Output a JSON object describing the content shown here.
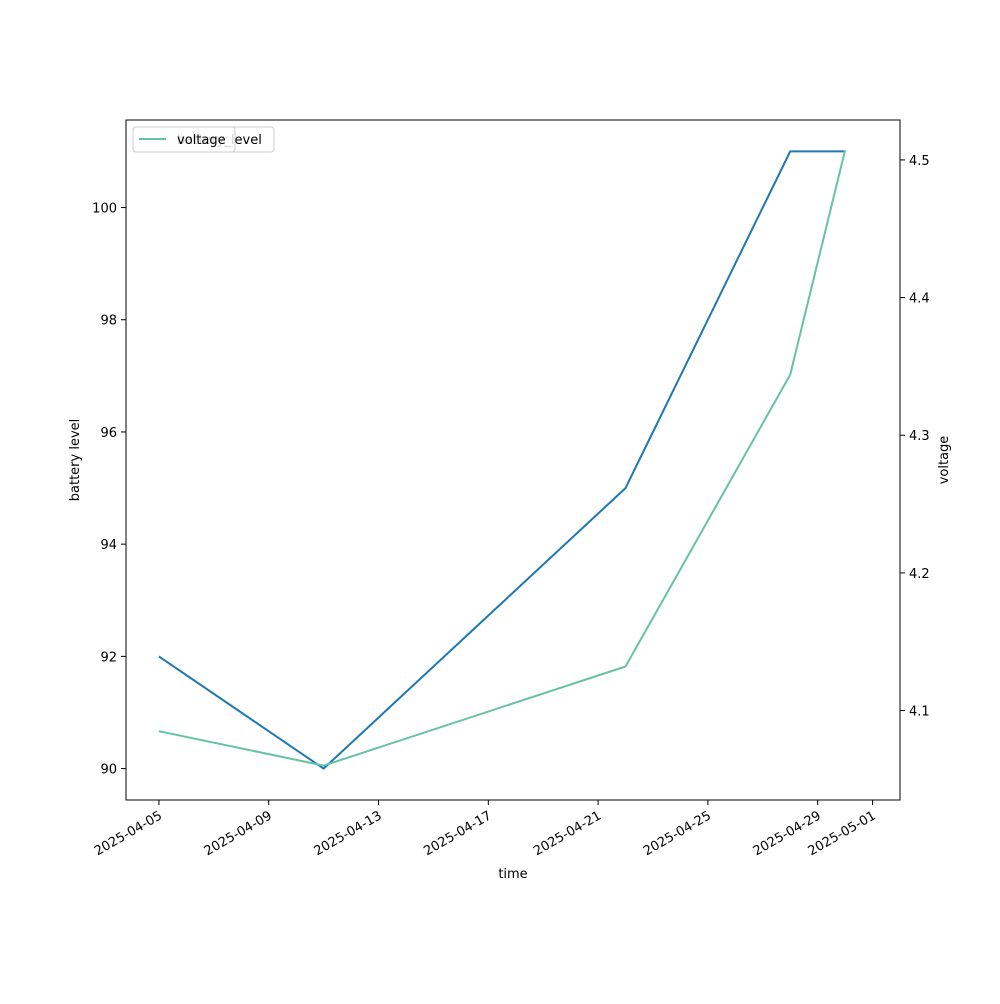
{
  "chart_data": {
    "type": "line",
    "xlabel": "time",
    "ylabel": "battery level",
    "y2label": "voltage",
    "x": [
      "2025-04-05",
      "2025-04-11",
      "2025-04-22",
      "2025-04-28",
      "2025-04-30"
    ],
    "xticks": [
      "2025-04-05",
      "2025-04-09",
      "2025-04-13",
      "2025-04-17",
      "2025-04-21",
      "2025-04-25",
      "2025-04-29",
      "2025-05-01"
    ],
    "xlim": [
      "2025-04-03 19:12",
      "2025-05-01 23:59"
    ],
    "ylim": [
      89.44,
      101.56
    ],
    "y2lim": [
      4.035,
      4.529
    ],
    "yticks": [
      "90",
      "92",
      "94",
      "96",
      "98",
      "100"
    ],
    "y2ticks": [
      "4.1",
      "4.2",
      "4.3",
      "4.4",
      "4.5"
    ],
    "grid": false,
    "legend_position": "top-left",
    "legend": [
      "battery_level",
      "voltage"
    ],
    "series": [
      {
        "name": "battery_level",
        "axis": "left",
        "color": "#1f77b4",
        "values": [
          92,
          90,
          95,
          101,
          101
        ]
      },
      {
        "name": "voltage",
        "axis": "right",
        "color": "#66c2a5",
        "values": [
          4.085,
          4.06,
          4.132,
          4.344,
          4.507
        ]
      }
    ]
  }
}
